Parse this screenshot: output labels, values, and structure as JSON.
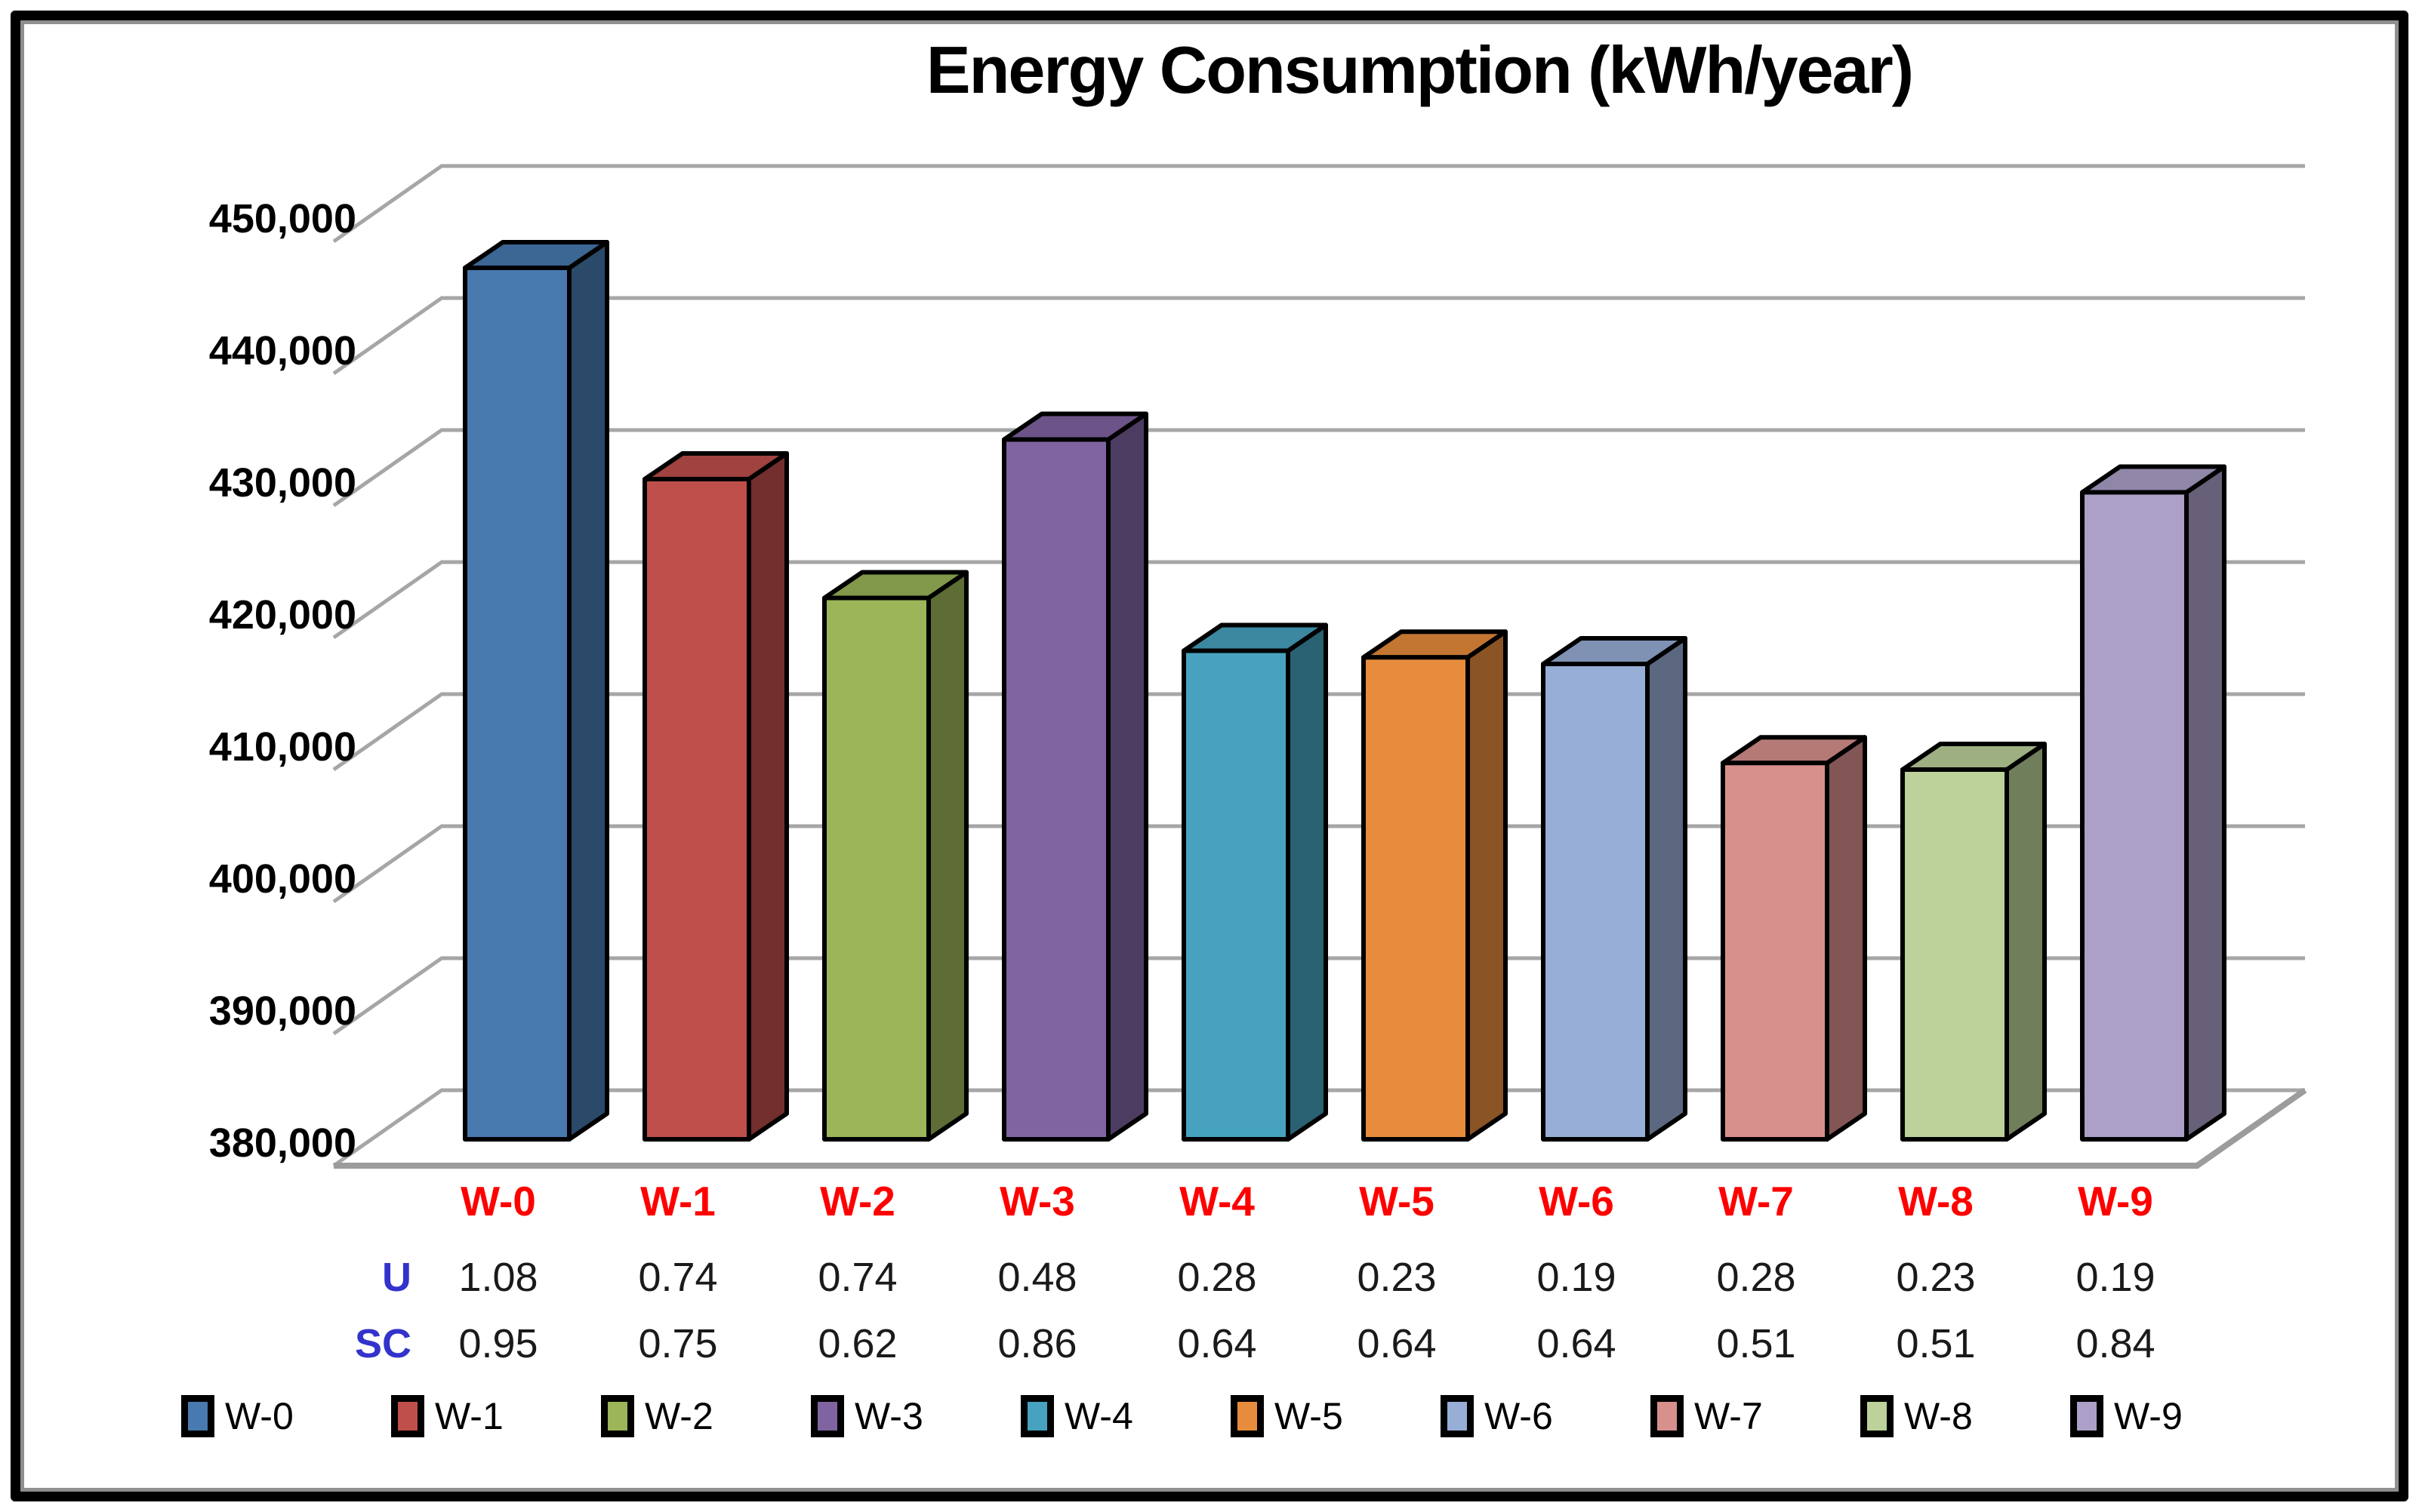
{
  "title": "Energy Consumption (kWh/year)",
  "chart_data": {
    "type": "bar",
    "style": "3d-column",
    "title": "Energy Consumption (kWh/year)",
    "categories": [
      "W-0",
      "W-1",
      "W-2",
      "W-3",
      "W-4",
      "W-5",
      "W-6",
      "W-7",
      "W-8",
      "W-9"
    ],
    "values": [
      446000,
      430000,
      421000,
      433000,
      417000,
      416500,
      416000,
      408500,
      408000,
      429000
    ],
    "bar_colors": [
      "#4879AF",
      "#BE4F4B",
      "#9BB558",
      "#8064A2",
      "#46A2BF",
      "#E78C3C",
      "#97AED6",
      "#D8908D",
      "#BCD29A",
      "#ACA0C8"
    ],
    "ylim": [
      380000,
      450000
    ],
    "y_step": 10000,
    "y_tick_labels": [
      "450,000",
      "440,000",
      "430,000",
      "420,000",
      "410,000",
      "400,000",
      "390,000",
      "380,000"
    ],
    "grid": true,
    "gridline_color": "#A6A6A6",
    "floor_line_color": "#9C9C9C",
    "bar_outline_color": "#000000",
    "legend_position": "bottom",
    "legend_labels": [
      "W-0",
      "W-1",
      "W-2",
      "W-3",
      "W-4",
      "W-5",
      "W-6",
      "W-7",
      "W-8",
      "W-9"
    ],
    "category_label_color": "#FF0000",
    "data_table": {
      "row_label_color": "#3333CC",
      "value_color": "#1a1a1a",
      "rows": [
        {
          "label": "U",
          "values": [
            "1.08",
            "0.74",
            "0.74",
            "0.48",
            "0.28",
            "0.23",
            "0.19",
            "0.28",
            "0.23",
            "0.19"
          ]
        },
        {
          "label": "SC",
          "values": [
            "0.95",
            "0.75",
            "0.62",
            "0.86",
            "0.64",
            "0.64",
            "0.64",
            "0.51",
            "0.51",
            "0.84"
          ]
        }
      ]
    }
  }
}
